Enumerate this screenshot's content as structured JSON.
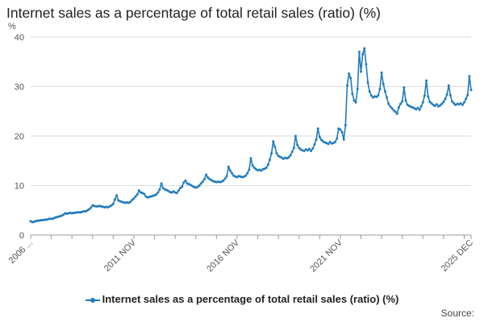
{
  "chart_data": {
    "type": "line",
    "title": "Internet sales as a percentage of total retail sales (ratio) (%)",
    "y_unit_label": "%",
    "ylim": [
      0,
      40
    ],
    "y_ticks": [
      0,
      10,
      20,
      30,
      40
    ],
    "x_tick_labels": [
      "2006 ...",
      "2011 NOV",
      "2016 NOV",
      "2021 NOV",
      "2025 DEC"
    ],
    "grid": "horizontal",
    "legend_position": "bottom",
    "color": "#1f7bbf",
    "series": [
      {
        "name": "Internet sales as a percentage of total retail sales (ratio) (%)",
        "x_start": "2006-11",
        "values": [
          2.8,
          2.6,
          2.7,
          2.8,
          2.9,
          2.9,
          3.0,
          3.0,
          3.1,
          3.1,
          3.2,
          3.3,
          3.3,
          3.3,
          3.5,
          3.6,
          3.7,
          3.8,
          3.9,
          4.1,
          4.4,
          4.3,
          4.4,
          4.5,
          4.4,
          4.5,
          4.5,
          4.6,
          4.6,
          4.6,
          4.7,
          4.8,
          4.8,
          5.0,
          5.2,
          5.5,
          6.0,
          5.9,
          5.8,
          5.8,
          5.9,
          5.8,
          5.7,
          5.6,
          5.7,
          5.6,
          5.8,
          6.0,
          6.3,
          7.2,
          8.0,
          7.0,
          6.8,
          6.7,
          6.6,
          6.5,
          6.6,
          6.5,
          6.7,
          7.1,
          7.4,
          7.8,
          8.2,
          9.0,
          8.6,
          8.5,
          8.3,
          7.8,
          7.6,
          7.7,
          7.8,
          7.9,
          8.0,
          8.2,
          8.6,
          9.2,
          10.4,
          9.5,
          9.2,
          9.1,
          8.9,
          8.7,
          8.6,
          8.8,
          8.6,
          8.5,
          9.0,
          9.5,
          9.8,
          10.6,
          11.0,
          10.4,
          10.3,
          10.1,
          9.9,
          9.7,
          9.6,
          9.7,
          10.0,
          10.4,
          10.8,
          11.3,
          12.2,
          11.6,
          11.3,
          11.1,
          10.9,
          10.8,
          10.7,
          10.8,
          10.7,
          10.8,
          11.0,
          11.4,
          11.9,
          13.8,
          13.0,
          12.5,
          12.0,
          11.8,
          11.7,
          11.9,
          11.8,
          11.7,
          11.8,
          12.0,
          12.5,
          13.2,
          15.5,
          14.0,
          13.6,
          13.3,
          13.1,
          13.2,
          13.0,
          13.3,
          13.4,
          13.6,
          14.2,
          15.2,
          16.5,
          18.9,
          17.8,
          16.5,
          16.0,
          15.8,
          15.6,
          15.4,
          15.6,
          15.5,
          15.7,
          16.1,
          16.8,
          17.6,
          20.0,
          18.2,
          17.6,
          17.3,
          17.1,
          17.0,
          17.3,
          17.1,
          17.4,
          17.0,
          17.5,
          18.3,
          19.3,
          21.5,
          19.8,
          19.2,
          18.9,
          18.7,
          18.6,
          18.4,
          18.8,
          18.5,
          18.6,
          18.8,
          19.5,
          21.5,
          21.3,
          20.8,
          19.3,
          22.2,
          30.2,
          32.6,
          31.7,
          28.5,
          27.2,
          26.8,
          29.5,
          37.0,
          33.0,
          36.5,
          37.7,
          34.5,
          30.8,
          29.0,
          28.2,
          27.8,
          28.0,
          27.9,
          28.2,
          29.5,
          32.8,
          30.5,
          29.0,
          27.8,
          26.5,
          26.0,
          25.6,
          25.2,
          24.9,
          24.5,
          25.8,
          26.5,
          27.0,
          29.8,
          27.2,
          26.3,
          26.1,
          25.9,
          25.8,
          25.6,
          25.4,
          25.7,
          25.3,
          26.0,
          26.8,
          28.2,
          31.2,
          28.0,
          26.9,
          26.6,
          26.3,
          26.1,
          26.4,
          26.0,
          26.2,
          26.5,
          26.9,
          27.5,
          28.4,
          30.2,
          28.2,
          27.0,
          26.6,
          26.3,
          26.5,
          26.4,
          26.6,
          26.3,
          26.8,
          27.5,
          28.3,
          32.1,
          29.3
        ]
      }
    ]
  },
  "source_label": "Source:"
}
